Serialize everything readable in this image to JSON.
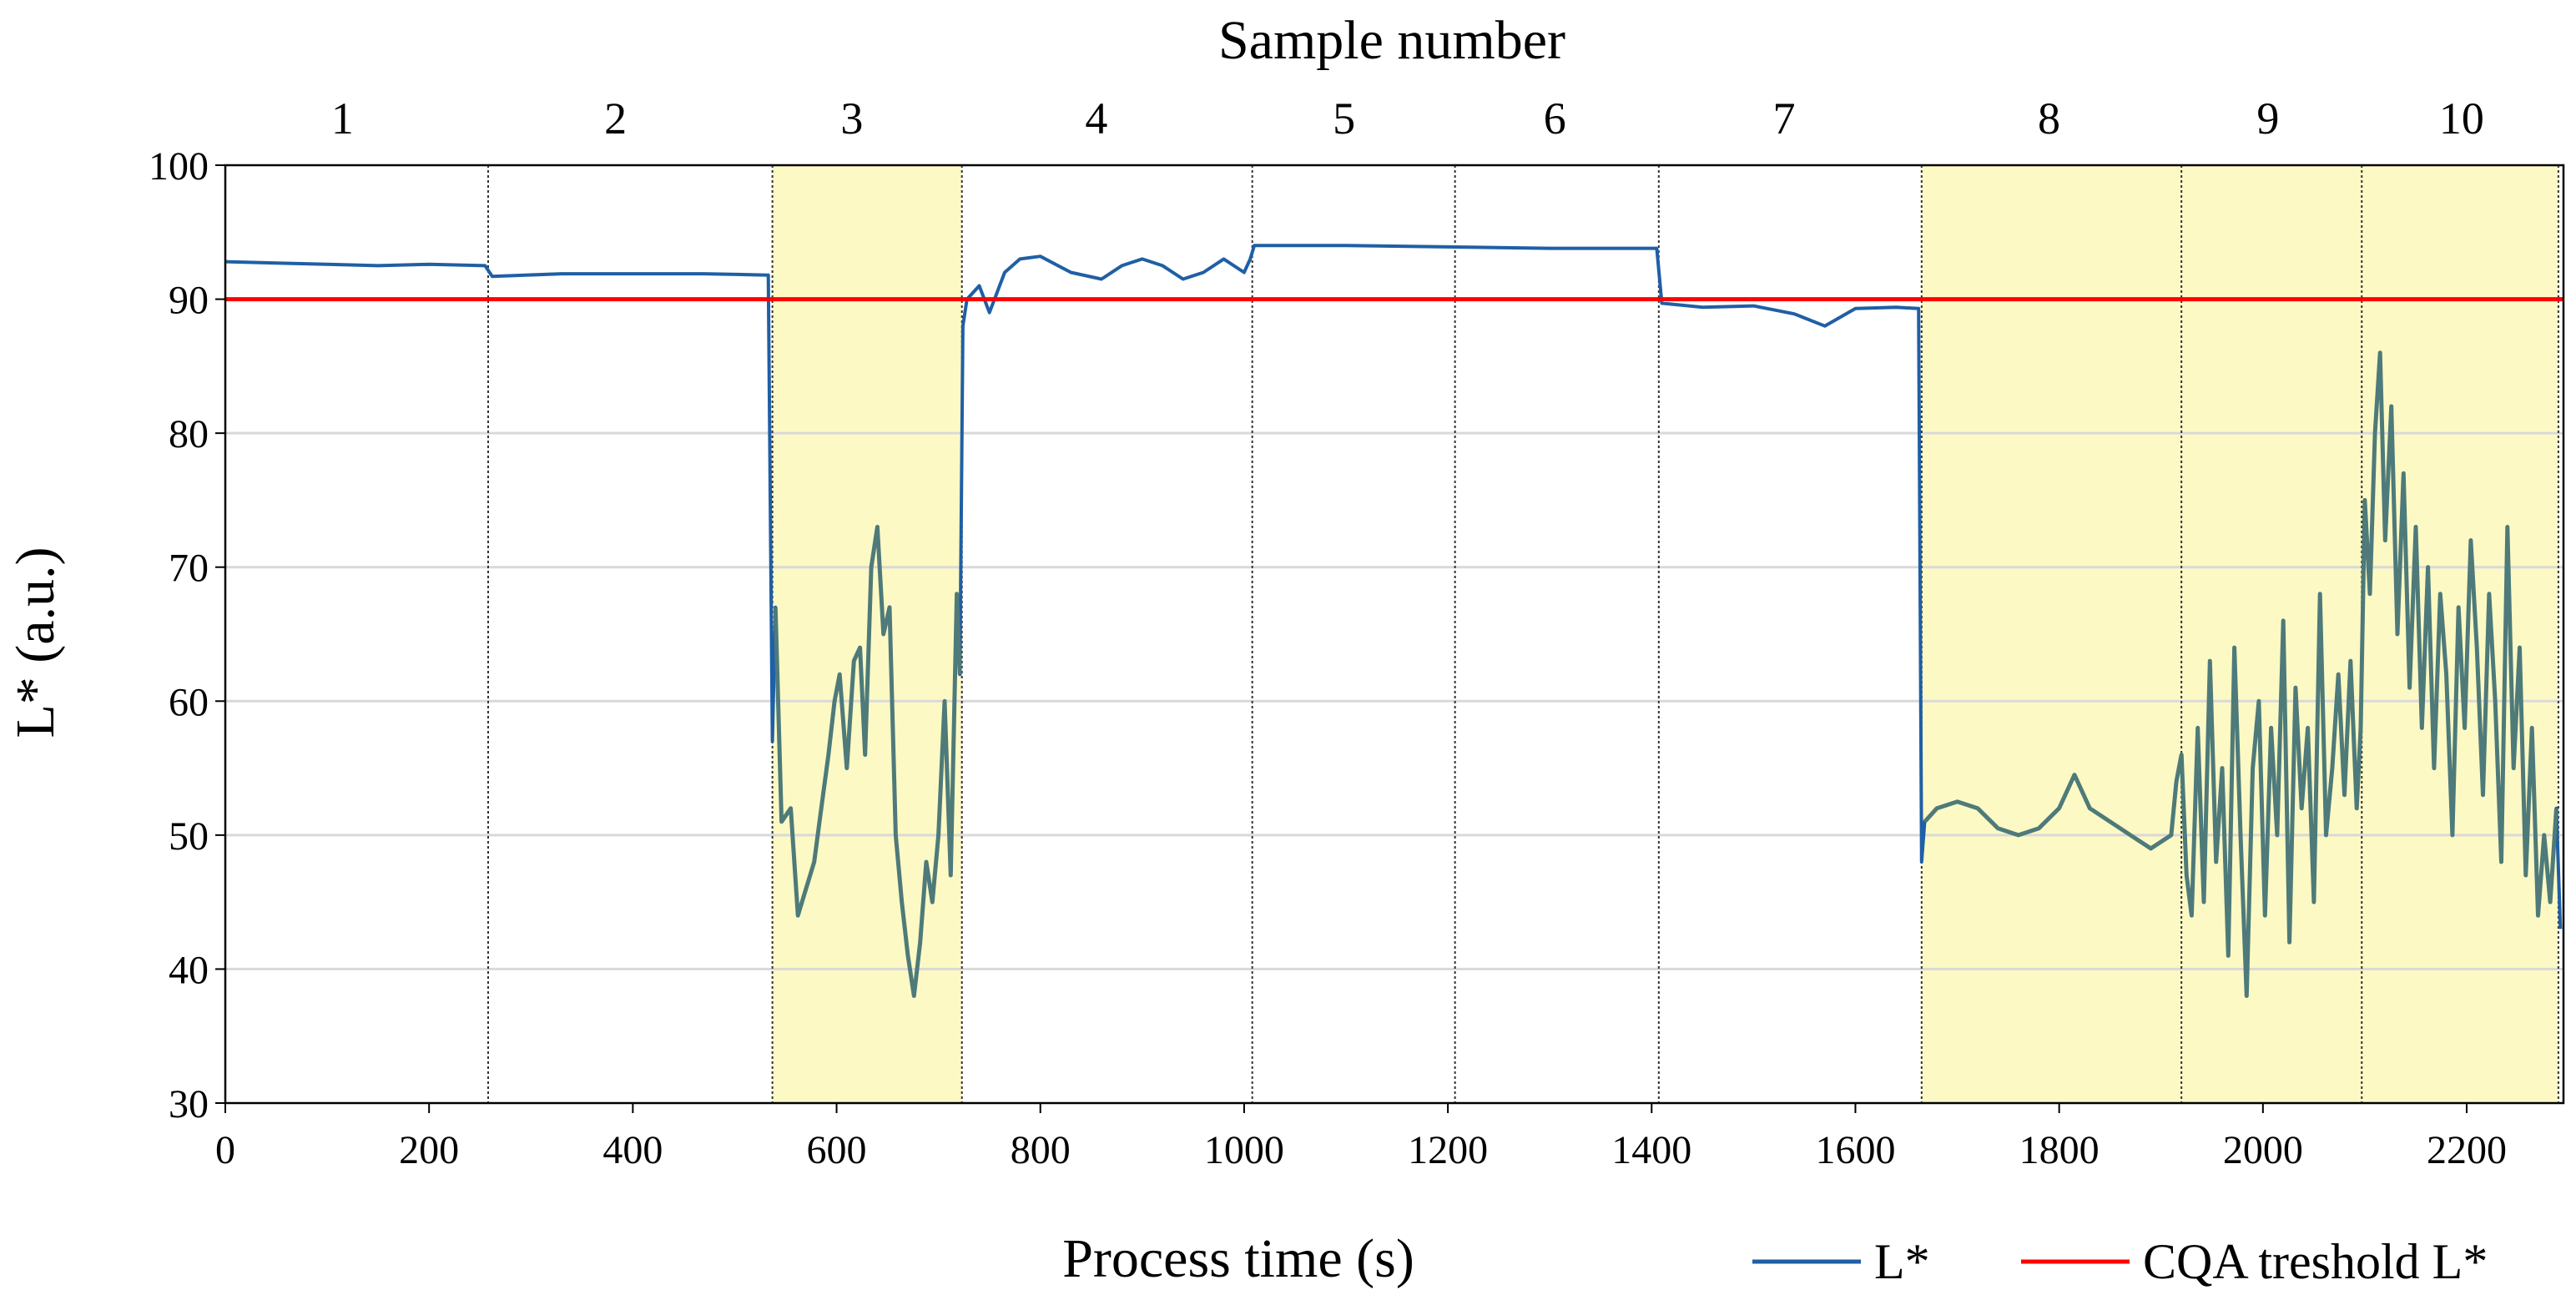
{
  "chart_data": {
    "type": "line",
    "top_title": "Sample number",
    "xlabel": "Process time (s)",
    "ylabel": "L* (a.u.)",
    "xlim": [
      0,
      2295
    ],
    "ylim": [
      30,
      100
    ],
    "x_ticks": [
      "0",
      "200",
      "400",
      "600",
      "800",
      "1000",
      "1200",
      "1400",
      "1600",
      "1800",
      "2000",
      "2200"
    ],
    "y_ticks": [
      "30",
      "40",
      "50",
      "60",
      "70",
      "80",
      "90",
      "100"
    ],
    "sample_boundaries": [
      258,
      537,
      723,
      1008,
      1207,
      1407,
      1665,
      1920,
      2097,
      2290
    ],
    "samples": [
      {
        "label": "1",
        "x": 115
      },
      {
        "label": "2",
        "x": 383
      },
      {
        "label": "3",
        "x": 615
      },
      {
        "label": "4",
        "x": 855
      },
      {
        "label": "5",
        "x": 1098
      },
      {
        "label": "6",
        "x": 1305
      },
      {
        "label": "7",
        "x": 1530
      },
      {
        "label": "8",
        "x": 1790
      },
      {
        "label": "9",
        "x": 2005
      },
      {
        "label": "10",
        "x": 2195
      }
    ],
    "highlight_ranges": [
      [
        537,
        723
      ],
      [
        1665,
        2290
      ]
    ],
    "highlight_color": "#fdf9c4",
    "threshold": {
      "name": "CQA treshold L*",
      "value": 90,
      "color": "#ff0000"
    },
    "series": [
      {
        "name": "L*",
        "color": "#1f5fa5",
        "points": [
          [
            0,
            92.8
          ],
          [
            50,
            92.7
          ],
          [
            100,
            92.6
          ],
          [
            150,
            92.5
          ],
          [
            200,
            92.6
          ],
          [
            255,
            92.5
          ],
          [
            262,
            91.7
          ],
          [
            330,
            91.9
          ],
          [
            400,
            91.9
          ],
          [
            470,
            91.9
          ],
          [
            533,
            91.8
          ],
          [
            537,
            57
          ],
          [
            540,
            67
          ],
          [
            546,
            51
          ],
          [
            555,
            52
          ],
          [
            562,
            44
          ],
          [
            570,
            46
          ],
          [
            578,
            48
          ],
          [
            585,
            52
          ],
          [
            592,
            56
          ],
          [
            598,
            60
          ],
          [
            603,
            62
          ],
          [
            610,
            55
          ],
          [
            617,
            63
          ],
          [
            623,
            64
          ],
          [
            628,
            56
          ],
          [
            634,
            70
          ],
          [
            640,
            73
          ],
          [
            646,
            65
          ],
          [
            652,
            67
          ],
          [
            658,
            50
          ],
          [
            664,
            45
          ],
          [
            670,
            41
          ],
          [
            676,
            38
          ],
          [
            682,
            42
          ],
          [
            688,
            48
          ],
          [
            694,
            45
          ],
          [
            700,
            50
          ],
          [
            706,
            60
          ],
          [
            712,
            47
          ],
          [
            718,
            68
          ],
          [
            721,
            62
          ],
          [
            724,
            88
          ],
          [
            728,
            90
          ],
          [
            740,
            91
          ],
          [
            750,
            89
          ],
          [
            765,
            92
          ],
          [
            780,
            93
          ],
          [
            800,
            93.2
          ],
          [
            830,
            92
          ],
          [
            860,
            91.5
          ],
          [
            880,
            92.5
          ],
          [
            900,
            93
          ],
          [
            920,
            92.5
          ],
          [
            940,
            91.5
          ],
          [
            960,
            92
          ],
          [
            980,
            93
          ],
          [
            1000,
            92
          ],
          [
            1006,
            93
          ],
          [
            1010,
            94
          ],
          [
            1100,
            94
          ],
          [
            1200,
            93.9
          ],
          [
            1300,
            93.8
          ],
          [
            1405,
            93.8
          ],
          [
            1410,
            89.7
          ],
          [
            1450,
            89.4
          ],
          [
            1500,
            89.5
          ],
          [
            1540,
            88.9
          ],
          [
            1570,
            88
          ],
          [
            1600,
            89.3
          ],
          [
            1640,
            89.4
          ],
          [
            1662,
            89.3
          ],
          [
            1665,
            48
          ],
          [
            1668,
            51
          ],
          [
            1680,
            52
          ],
          [
            1700,
            52.5
          ],
          [
            1720,
            52
          ],
          [
            1740,
            50.5
          ],
          [
            1760,
            50
          ],
          [
            1780,
            50.5
          ],
          [
            1800,
            52
          ],
          [
            1815,
            54.5
          ],
          [
            1830,
            52
          ],
          [
            1850,
            51
          ],
          [
            1870,
            50
          ],
          [
            1890,
            49
          ],
          [
            1910,
            50
          ],
          [
            1915,
            54
          ],
          [
            1920,
            56
          ],
          [
            1925,
            47
          ],
          [
            1930,
            44
          ],
          [
            1936,
            58
          ],
          [
            1942,
            45
          ],
          [
            1948,
            63
          ],
          [
            1954,
            48
          ],
          [
            1960,
            55
          ],
          [
            1966,
            41
          ],
          [
            1972,
            64
          ],
          [
            1978,
            50
          ],
          [
            1984,
            38
          ],
          [
            1990,
            55
          ],
          [
            1996,
            60
          ],
          [
            2002,
            44
          ],
          [
            2008,
            58
          ],
          [
            2014,
            50
          ],
          [
            2020,
            66
          ],
          [
            2026,
            42
          ],
          [
            2032,
            61
          ],
          [
            2038,
            52
          ],
          [
            2044,
            58
          ],
          [
            2050,
            45
          ],
          [
            2056,
            68
          ],
          [
            2062,
            50
          ],
          [
            2068,
            55
          ],
          [
            2074,
            62
          ],
          [
            2080,
            53
          ],
          [
            2086,
            63
          ],
          [
            2092,
            52
          ],
          [
            2096,
            58
          ],
          [
            2100,
            75
          ],
          [
            2105,
            68
          ],
          [
            2110,
            80
          ],
          [
            2115,
            86
          ],
          [
            2120,
            72
          ],
          [
            2126,
            82
          ],
          [
            2132,
            65
          ],
          [
            2138,
            77
          ],
          [
            2144,
            61
          ],
          [
            2150,
            73
          ],
          [
            2156,
            58
          ],
          [
            2162,
            70
          ],
          [
            2168,
            55
          ],
          [
            2174,
            68
          ],
          [
            2180,
            62
          ],
          [
            2186,
            50
          ],
          [
            2192,
            67
          ],
          [
            2198,
            58
          ],
          [
            2204,
            72
          ],
          [
            2210,
            64
          ],
          [
            2216,
            53
          ],
          [
            2222,
            68
          ],
          [
            2228,
            60
          ],
          [
            2234,
            48
          ],
          [
            2240,
            73
          ],
          [
            2246,
            55
          ],
          [
            2252,
            64
          ],
          [
            2258,
            47
          ],
          [
            2264,
            58
          ],
          [
            2270,
            44
          ],
          [
            2276,
            50
          ],
          [
            2282,
            45
          ],
          [
            2288,
            52
          ],
          [
            2292,
            43
          ]
        ]
      }
    ],
    "legend": [
      {
        "name": "L*",
        "color": "#1f5fa5"
      },
      {
        "name": "CQA treshold L*",
        "color": "#ff0000"
      }
    ]
  }
}
